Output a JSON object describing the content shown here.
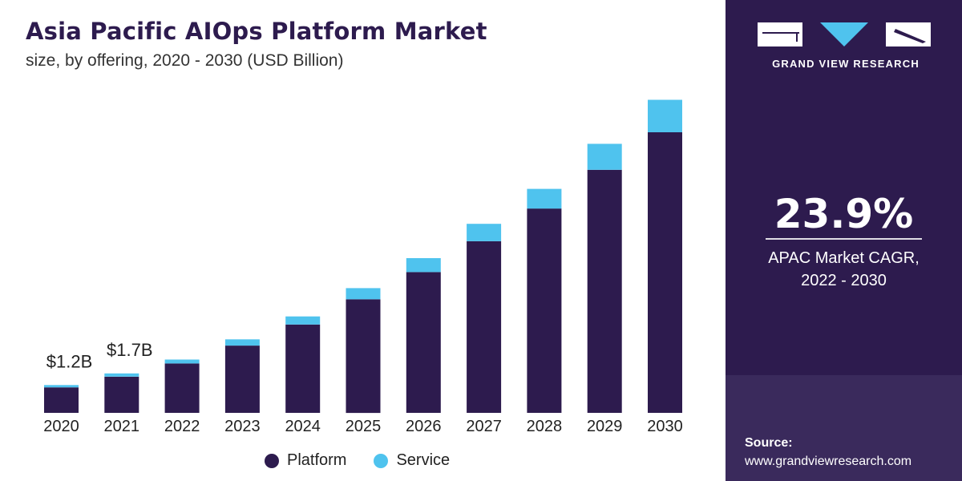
{
  "header": {
    "title": "Asia Pacific AIOps Platform Market",
    "subtitle": "size, by offering, 2020 - 2030 (USD Billion)"
  },
  "colors": {
    "platform": "#2d1b4e",
    "service": "#4fc3ee",
    "panel": "#2d1b4e"
  },
  "chart_data": {
    "type": "bar",
    "stacked": true,
    "categories": [
      "2020",
      "2021",
      "2022",
      "2023",
      "2024",
      "2025",
      "2026",
      "2027",
      "2028",
      "2029",
      "2030"
    ],
    "series": [
      {
        "name": "Platform",
        "values": [
          1.1,
          1.56,
          2.13,
          2.9,
          3.81,
          4.9,
          6.07,
          7.4,
          8.81,
          10.48,
          12.1
        ]
      },
      {
        "name": "Service",
        "values": [
          0.1,
          0.14,
          0.17,
          0.27,
          0.35,
          0.48,
          0.6,
          0.75,
          0.85,
          1.12,
          1.4
        ]
      }
    ],
    "data_labels": [
      {
        "category": "2020",
        "text": "$1.2B"
      },
      {
        "category": "2021",
        "text": "$1.7B"
      }
    ],
    "ylim": [
      0,
      14
    ],
    "grid": false,
    "legend": "bottom-center",
    "xlabel": "",
    "ylabel": ""
  },
  "legend": {
    "platform": "Platform",
    "service": "Service"
  },
  "sidebar": {
    "brand": "GRAND VIEW RESEARCH",
    "cagr_value": "23.9%",
    "cagr_label_line1": "APAC Market CAGR,",
    "cagr_label_line2": "2022 - 2030",
    "source_label": "Source:",
    "source_url": "www.grandviewresearch.com"
  }
}
